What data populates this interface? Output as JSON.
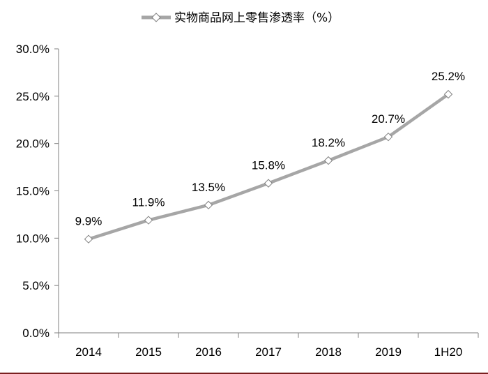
{
  "chart_data": {
    "type": "line",
    "categories": [
      "2014",
      "2015",
      "2016",
      "2017",
      "2018",
      "2019",
      "1H20"
    ],
    "series": [
      {
        "name": "实物商品网上零售渗透率（%）",
        "values": [
          9.9,
          11.9,
          13.5,
          15.8,
          18.2,
          20.7,
          25.2
        ],
        "labels": [
          "9.9%",
          "11.9%",
          "13.5%",
          "15.8%",
          "18.2%",
          "20.7%",
          "25.2%"
        ]
      }
    ],
    "yticks": [
      "0.0%",
      "5.0%",
      "10.0%",
      "15.0%",
      "20.0%",
      "25.0%",
      "30.0%"
    ],
    "ylim": [
      0,
      30
    ],
    "grid": false,
    "legend": "top-center",
    "line_color": "#a6a6a6",
    "marker": "diamond-open"
  }
}
